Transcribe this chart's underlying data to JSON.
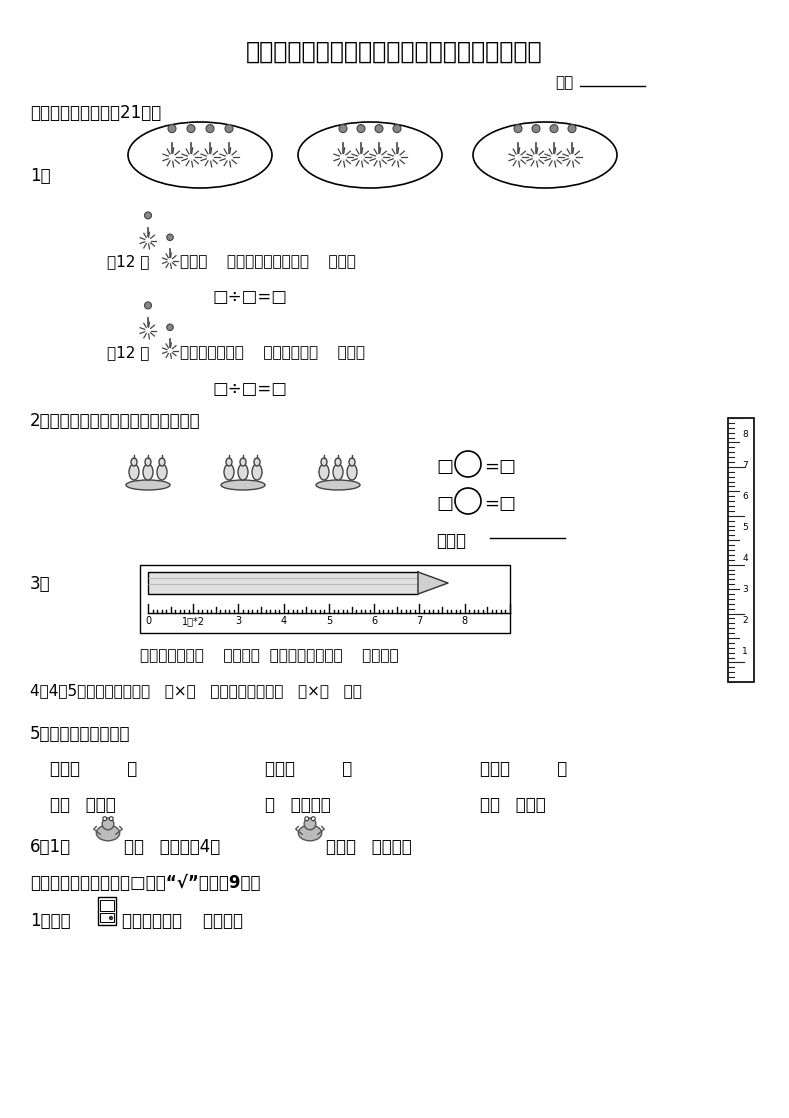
{
  "title": "苏教版国标本小学二年级数学（上册）期中练习",
  "bg_color": "#ffffff",
  "sec1": "一、看图填空。（共21分）",
  "q1_text1": "\u000112 朵    ，每（    ）朵一份，分成了（    ）份。",
  "q1_formula1": "□÷□=□",
  "q1_text2": "\u000212 朵    ，平均分成了（    ）份，每份（    ）朵。",
  "q1_formula2": "□÷□=□",
  "q2_label": "2、看图写出两道算式，并写出口诀。",
  "q2_f1a": "□",
  "q2_f1b": "=□",
  "q2_f2a": "□",
  "q2_f2b": "=□",
  "q2_kouji": "口诀：",
  "q3_label": "3、",
  "q3_text": "上图中铅笔长（    ）厘米。  右图中鐵钉长约（    ）厘米。",
  "q4_text": "4、4䗥相加，可以写作（   ）×（   ），也可以写作（   ）×（   ）。",
  "q5_title": "5、把口诀补充完整。",
  "q5_r1_1": "二四（         ）",
  "q5_r1_2": "三五（         ）",
  "q5_r1_3": "四六（         ）",
  "q5_r2_1": "二（   ）一十",
  "q5_r2_2": "（   ）三得六",
  "q5_r2_3": "三（   ）十二",
  "q6_text1": "6、1只",
  "q6_text2": "有（   ）只脚，4只",
  "q6_text3": "共有（   ）只脚。",
  "sec2": "二、请在正确答案后的□里画“√”。（兲9分）",
  "q_s2_1a": "1、我家",
  "q_s2_1b": "的高度约是（    ）厘米。",
  "score_label": "得分"
}
